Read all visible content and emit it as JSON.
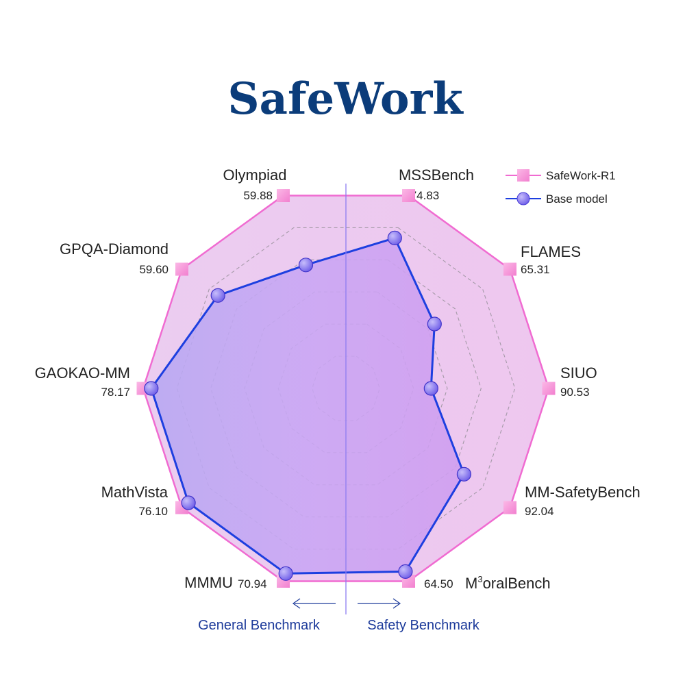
{
  "chart_data": {
    "type": "radar",
    "title": "SafeWork",
    "axes": [
      {
        "name": "MSSBench",
        "value": "74.83"
      },
      {
        "name": "FLAMES",
        "value": "65.31"
      },
      {
        "name": "SIUO",
        "value": "90.53"
      },
      {
        "name": "MM-SafetyBench",
        "value": "92.04"
      },
      {
        "name": "M³oralBench",
        "name_base": "M",
        "name_sup": "3",
        "name_rest": "oralBench",
        "value": "64.50"
      },
      {
        "name": "MMMU",
        "value": "70.94"
      },
      {
        "name": "MathVista",
        "value": "76.10"
      },
      {
        "name": "GAOKAO-MM",
        "value": "78.17"
      },
      {
        "name": "GPQA-Diamond",
        "value": "59.60"
      },
      {
        "name": "Olympiad",
        "value": "59.88"
      }
    ],
    "series": [
      {
        "name": "SafeWork-R1",
        "values": [
          1.0,
          1.0,
          1.0,
          1.0,
          1.0,
          1.0,
          1.0,
          1.0,
          1.0,
          1.0
        ],
        "color": "#f06bd1",
        "marker": "square"
      },
      {
        "name": "Base model",
        "values": [
          0.78,
          0.54,
          0.42,
          0.72,
          0.95,
          0.96,
          0.96,
          0.96,
          0.78,
          0.64
        ],
        "color": "#1d3fe0",
        "marker": "circle"
      }
    ],
    "rings": 5,
    "grid": true,
    "legend": "top-right",
    "divider_labels": {
      "left": "General Benchmark",
      "right": "Safety Benchmark"
    }
  },
  "colors": {
    "title": "#0b3c7a",
    "outer_line": "#f06bd1",
    "outer_fill": "#e9c6ef",
    "base_line": "#1d3fe0",
    "base_fill": "#c58ff0",
    "grid": "#a59aa8",
    "divider": "#8d7cf0",
    "marker_square": "#f59ad8",
    "marker_circle": "#9a8af5",
    "side_label": "#1c3a9a"
  }
}
